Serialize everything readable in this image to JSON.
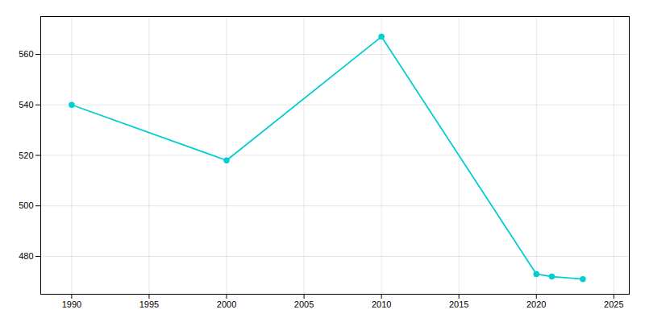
{
  "chart_data": {
    "type": "line",
    "x": [
      1990,
      2000,
      2010,
      2020,
      2021,
      2023
    ],
    "values": [
      540,
      518,
      567,
      473,
      472,
      471
    ],
    "color": "#00CED1",
    "marker": "circle",
    "xlim": [
      1988,
      2026
    ],
    "ylim": [
      465,
      575
    ],
    "xticks": [
      1990,
      1995,
      2000,
      2005,
      2010,
      2015,
      2020,
      2025
    ],
    "yticks": [
      480,
      500,
      520,
      540,
      560
    ],
    "grid": true
  }
}
